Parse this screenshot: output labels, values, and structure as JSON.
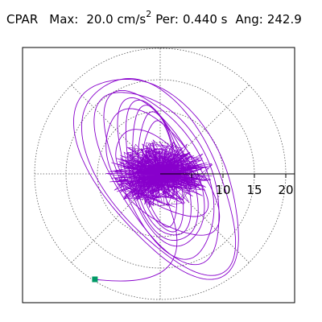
{
  "header": {
    "station": "CPAR",
    "max_label": "Max:",
    "max_value": "20.0 cm/s",
    "max_unit_exp": "2",
    "per_label": "Per:",
    "per_value": "0.440 s",
    "ang_label": "Ang:",
    "ang_value": "242.9"
  },
  "chart_data": {
    "type": "polar-orbit",
    "title": "",
    "tick_labels": [
      "5",
      "10",
      "15",
      "20"
    ],
    "radial_ticks": [
      5,
      10,
      15,
      20
    ],
    "max_radius": 20,
    "grid": true,
    "grid_rings": [
      5,
      10,
      15,
      20
    ],
    "grid_spokes_deg": [
      0,
      45,
      90,
      135,
      180,
      225,
      270,
      315
    ],
    "trace_color": "#8800cc",
    "end_marker_color": "#009966",
    "end_point": {
      "x": -10.4,
      "y": -16.8
    },
    "loops": [
      {
        "a": 8.8,
        "b": 17.6,
        "rot": 33,
        "phase": 0.0
      },
      {
        "a": 9.6,
        "b": 18.2,
        "rot": 35,
        "phase": 0.7
      },
      {
        "a": 7.4,
        "b": 15.2,
        "rot": 30,
        "phase": 1.2
      },
      {
        "a": 6.6,
        "b": 14.4,
        "rot": 26,
        "phase": 2.0
      },
      {
        "a": 5.4,
        "b": 12.4,
        "rot": 22,
        "phase": 2.6
      },
      {
        "a": 4.7,
        "b": 11.6,
        "rot": 18,
        "phase": 3.1
      },
      {
        "a": 4.0,
        "b": 10.6,
        "rot": 14,
        "phase": 3.6
      },
      {
        "a": 3.2,
        "b": 9.6,
        "rot": 10,
        "phase": 4.2
      },
      {
        "a": 2.6,
        "b": 8.4,
        "rot": 6,
        "phase": 4.8
      },
      {
        "a": 6.0,
        "b": 12.0,
        "rot": 40,
        "phase": 5.3
      },
      {
        "a": 4.4,
        "b": 9.0,
        "rot": 48,
        "phase": 5.8
      }
    ]
  }
}
